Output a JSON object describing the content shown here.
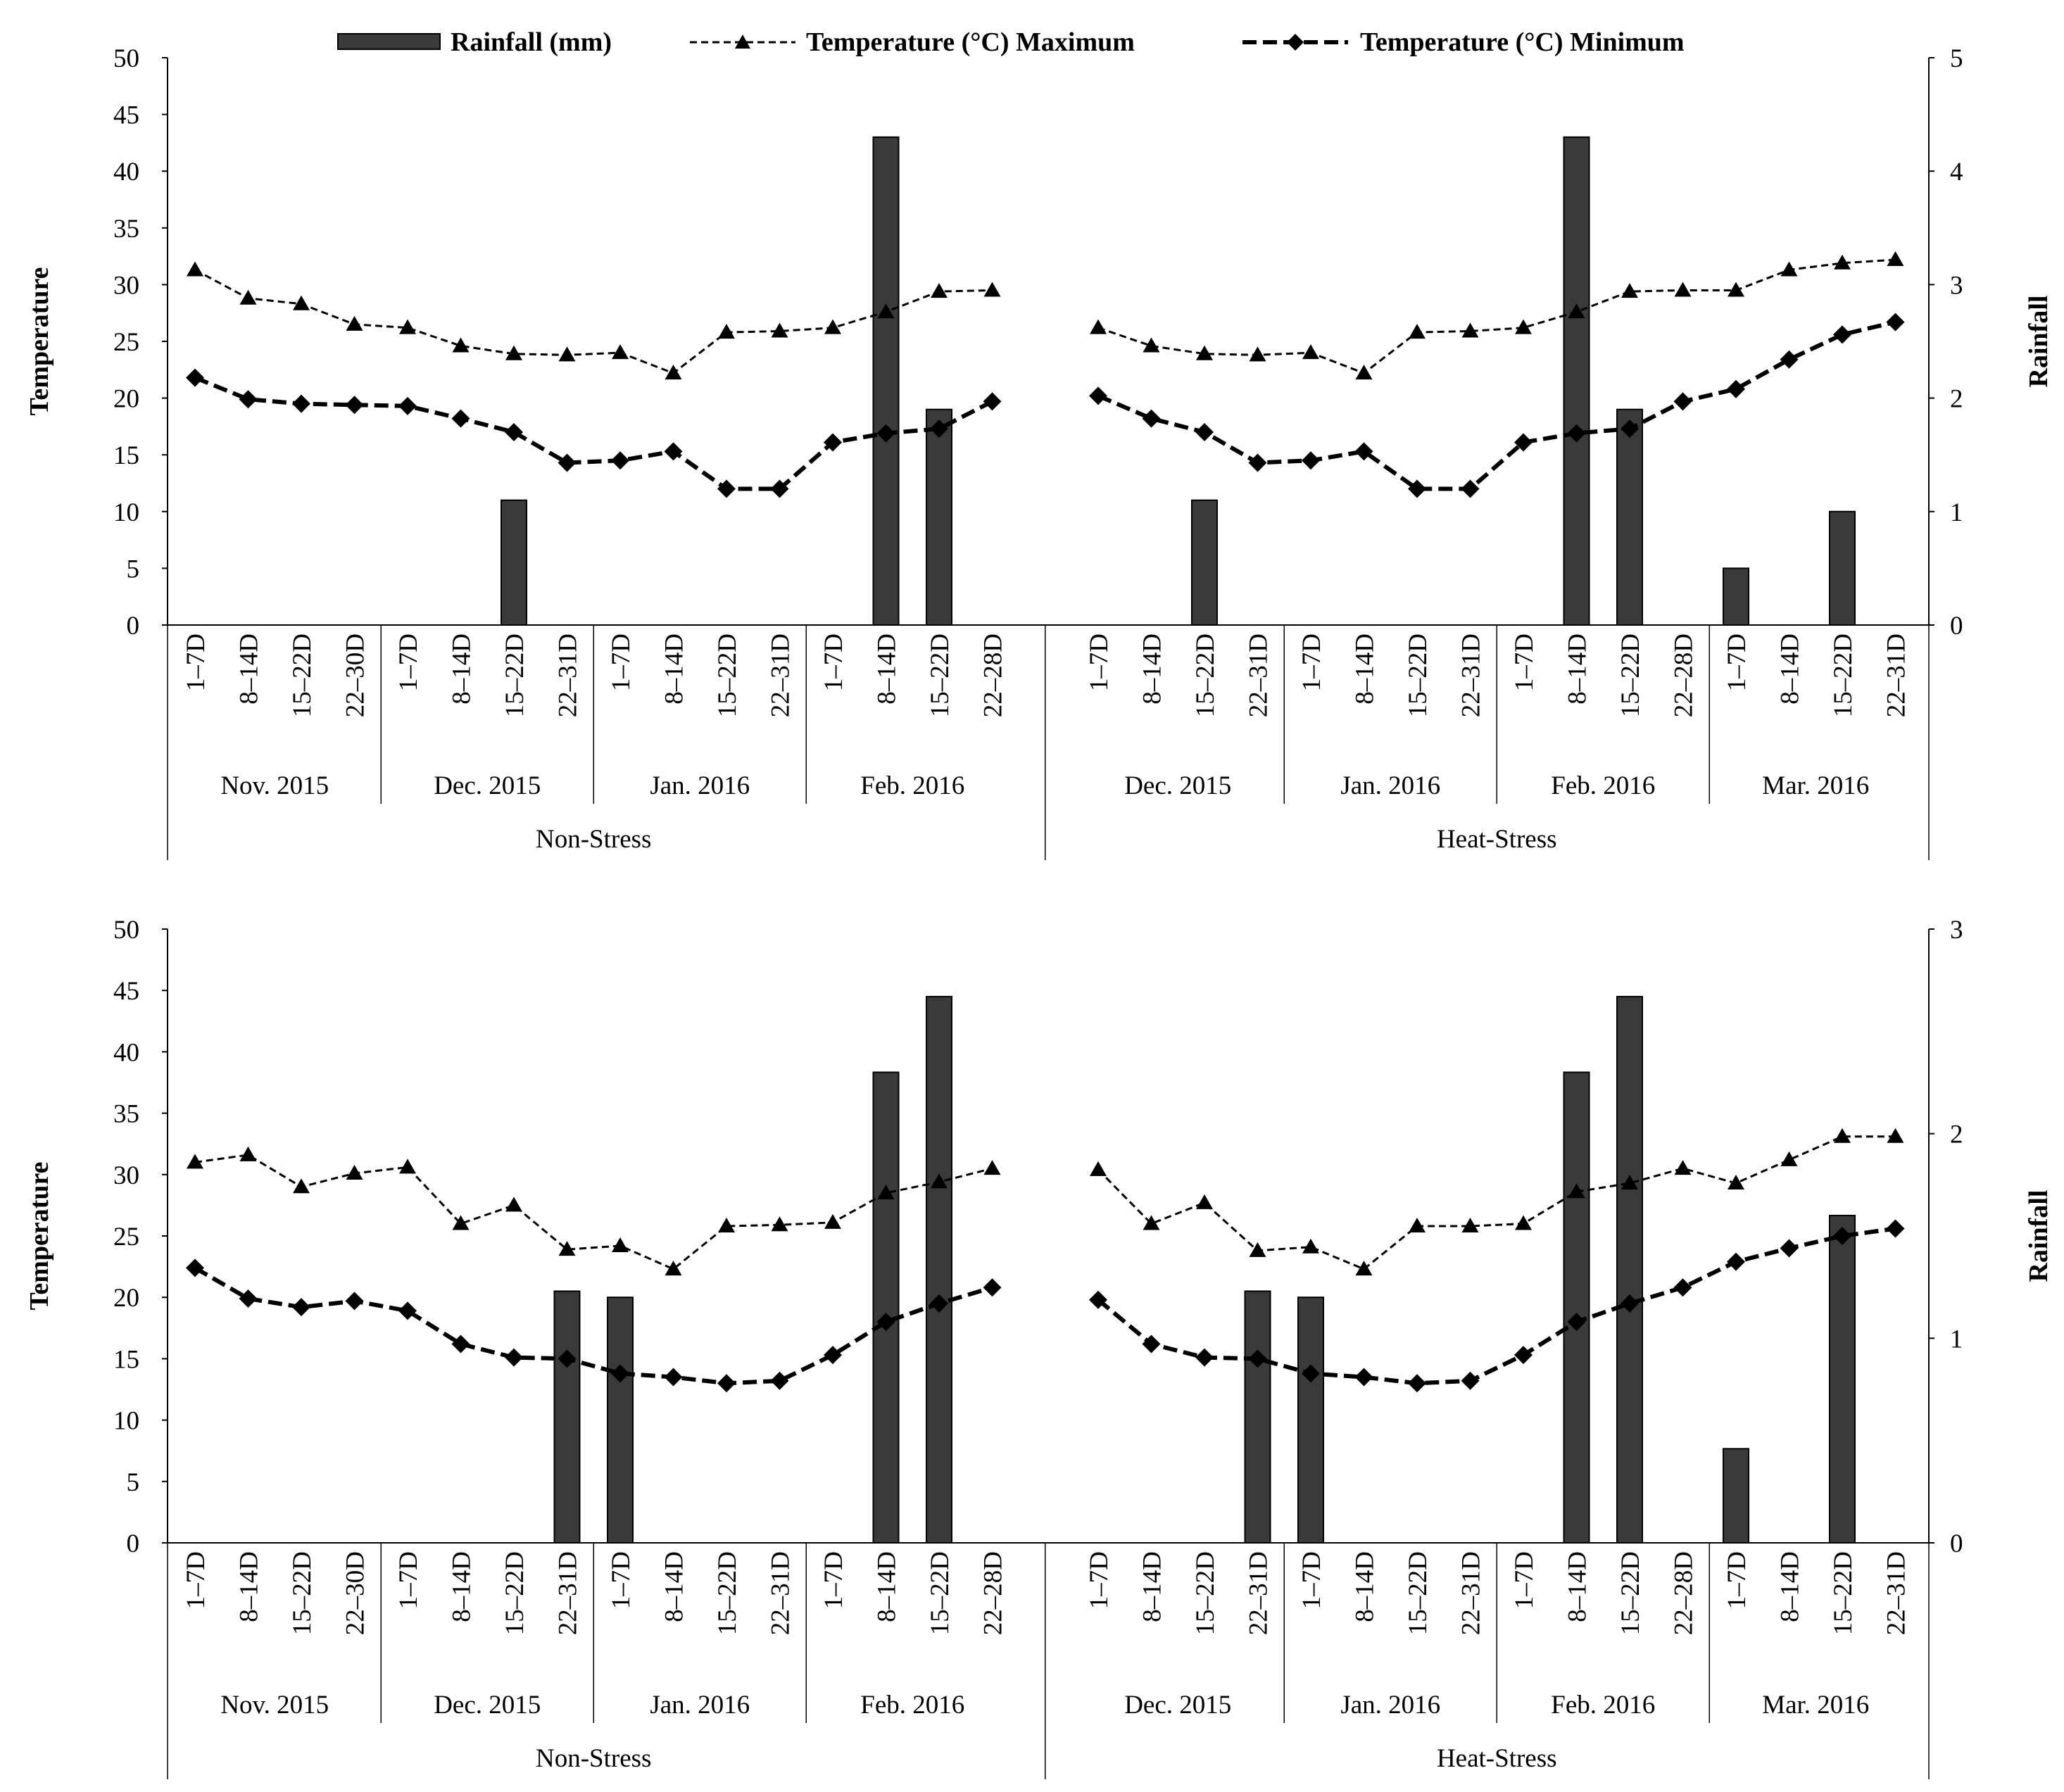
{
  "legend": {
    "rain": "Rainfall (mm)",
    "tmax": "Temperature (°C) Maximum",
    "tmin": "Temperature (°C) Minimum"
  },
  "colors": {
    "bar": "#3a3a3a",
    "line": "#000000",
    "axis": "#000000"
  },
  "chart_data": [
    {
      "type": "bar+line",
      "ylabel": "Temperature",
      "y2label": "Rainfall",
      "ylim": [
        0,
        50
      ],
      "y2lim": [
        0,
        5
      ],
      "yticks": [
        "0",
        "5",
        "10",
        "15",
        "20",
        "25",
        "30",
        "35",
        "40",
        "45",
        "50"
      ],
      "y2ticks": [
        "0",
        "1",
        "2",
        "3",
        "4",
        "5"
      ],
      "treatments": [
        {
          "name": "Non-Stress",
          "months": [
            {
              "label": "Nov. 2015",
              "weeks": [
                "1–7D",
                "8–14D",
                "15–22D",
                "22–30D"
              ]
            },
            {
              "label": "Dec. 2015",
              "weeks": [
                "1–7D",
                "8–14D",
                "15–22D",
                "22–31D"
              ]
            },
            {
              "label": "Jan. 2016",
              "weeks": [
                "1–7D",
                "8–14D",
                "15–22D",
                "22–31D"
              ]
            },
            {
              "label": "Feb. 2016",
              "weeks": [
                "1–7D",
                "8–14D",
                "15–22D",
                "22–28D"
              ]
            }
          ],
          "tmax": [
            31.3,
            28.8,
            28.3,
            26.5,
            26.2,
            24.6,
            23.9,
            23.8,
            24.0,
            22.2,
            25.8,
            25.9,
            26.2,
            27.6,
            29.4,
            29.5
          ],
          "tmin": [
            21.8,
            19.9,
            19.5,
            19.4,
            19.3,
            18.2,
            17.0,
            14.3,
            14.5,
            15.3,
            12.0,
            12.0,
            16.1,
            16.9,
            17.3,
            19.7
          ],
          "rain": [
            0,
            0,
            0,
            0,
            0,
            0,
            1.1,
            0,
            0,
            0,
            0,
            0,
            0,
            4.3,
            1.9,
            0
          ]
        },
        {
          "name": "Heat-Stress",
          "months": [
            {
              "label": "Dec. 2015",
              "weeks": [
                "1–7D",
                "8–14D",
                "15–22D",
                "22–31D"
              ]
            },
            {
              "label": "Jan. 2016",
              "weeks": [
                "1–7D",
                "8–14D",
                "15–22D",
                "22–31D"
              ]
            },
            {
              "label": "Feb. 2016",
              "weeks": [
                "1–7D",
                "8–14D",
                "15–22D",
                "22–28D"
              ]
            },
            {
              "label": "Mar. 2016",
              "weeks": [
                "1–7D",
                "8–14D",
                "15–22D",
                "22–31D"
              ]
            }
          ],
          "tmax": [
            26.2,
            24.6,
            23.9,
            23.8,
            24.0,
            22.2,
            25.8,
            25.9,
            26.2,
            27.6,
            29.4,
            29.5,
            29.5,
            31.3,
            31.9,
            32.2
          ],
          "tmin": [
            20.2,
            18.2,
            17.0,
            14.3,
            14.5,
            15.3,
            12.0,
            12.0,
            16.1,
            16.9,
            17.3,
            19.7,
            20.8,
            23.4,
            25.6,
            26.7
          ],
          "rain": [
            0,
            0,
            1.1,
            0,
            0,
            0,
            0,
            0,
            0,
            4.3,
            1.9,
            0,
            0.5,
            0,
            1.0,
            0
          ]
        }
      ]
    },
    {
      "type": "bar+line",
      "ylabel": "Temperature",
      "y2label": "Rainfall",
      "ylim": [
        0,
        50
      ],
      "y2lim": [
        0,
        3
      ],
      "yticks": [
        "0",
        "5",
        "10",
        "15",
        "20",
        "25",
        "30",
        "35",
        "40",
        "45",
        "50"
      ],
      "y2ticks": [
        "0",
        "1",
        "2",
        "3"
      ],
      "treatments": [
        {
          "name": "Non-Stress",
          "months": [
            {
              "label": "Nov. 2015",
              "weeks": [
                "1–7D",
                "8–14D",
                "15–22D",
                "22–30D"
              ]
            },
            {
              "label": "Dec. 2015",
              "weeks": [
                "1–7D",
                "8–14D",
                "15–22D",
                "22–31D"
              ]
            },
            {
              "label": "Jan. 2016",
              "weeks": [
                "1–7D",
                "8–14D",
                "15–22D",
                "22–31D"
              ]
            },
            {
              "label": "Feb. 2016",
              "weeks": [
                "1–7D",
                "8–14D",
                "15–22D",
                "22–28D"
              ]
            }
          ],
          "tmax": [
            31.0,
            31.6,
            29.0,
            30.1,
            30.6,
            26.0,
            27.5,
            23.9,
            24.2,
            22.3,
            25.8,
            25.9,
            26.1,
            28.5,
            29.4,
            30.5
          ],
          "tmin": [
            22.4,
            19.9,
            19.2,
            19.7,
            18.9,
            16.2,
            15.1,
            15.0,
            13.8,
            13.5,
            13.0,
            13.2,
            15.3,
            18.0,
            19.5,
            20.8
          ],
          "rain": [
            0,
            0,
            0,
            0,
            0,
            0,
            0,
            1.23,
            1.2,
            0,
            0,
            0,
            0,
            2.3,
            2.67,
            0
          ]
        },
        {
          "name": "Heat-Stress",
          "months": [
            {
              "label": "Dec. 2015",
              "weeks": [
                "1–7D",
                "8–14D",
                "15–22D",
                "22–31D"
              ]
            },
            {
              "label": "Jan. 2016",
              "weeks": [
                "1–7D",
                "8–14D",
                "15–22D",
                "22–31D"
              ]
            },
            {
              "label": "Feb. 2016",
              "weeks": [
                "1–7D",
                "8–14D",
                "15–22D",
                "22–28D"
              ]
            },
            {
              "label": "Mar. 2016",
              "weeks": [
                "1–7D",
                "8–14D",
                "15–22D",
                "22–31D"
              ]
            }
          ],
          "tmax": [
            30.4,
            26.0,
            27.7,
            23.8,
            24.1,
            22.3,
            25.8,
            25.8,
            26.0,
            28.6,
            29.3,
            30.5,
            29.3,
            31.2,
            33.1,
            33.1
          ],
          "tmin": [
            19.8,
            16.2,
            15.1,
            15.0,
            13.8,
            13.5,
            13.0,
            13.2,
            15.3,
            18.0,
            19.5,
            20.8,
            22.9,
            24.0,
            25.0,
            25.6
          ],
          "rain": [
            0,
            0,
            0,
            1.23,
            1.2,
            0,
            0,
            0,
            0,
            2.3,
            2.67,
            0,
            0.46,
            0,
            1.6,
            0
          ]
        }
      ]
    }
  ]
}
